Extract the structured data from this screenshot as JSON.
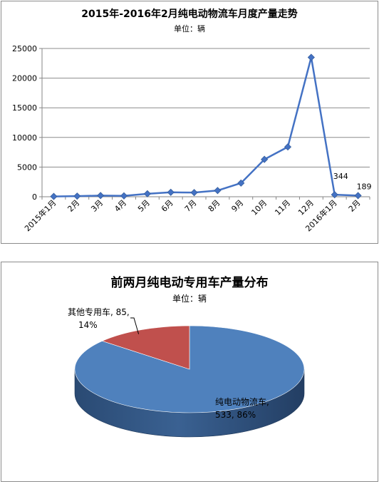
{
  "chart_data": [
    {
      "type": "line",
      "title": "2015年-2016年2月纯电动物流车月度产量走势",
      "subtitle": "单位：辆",
      "categories": [
        "2015年1月",
        "2月",
        "3月",
        "4月",
        "5月",
        "6月",
        "7月",
        "8月",
        "9月",
        "10月",
        "11月",
        "12月",
        "2016年1月",
        "2月"
      ],
      "series": [
        {
          "values": [
            50,
            100,
            200,
            150,
            500,
            750,
            700,
            1050,
            2300,
            6300,
            8400,
            23500,
            344,
            189
          ]
        }
      ],
      "data_labels": [
        "",
        "",
        "",
        "",
        "",
        "",
        "",
        "",
        "",
        "",
        "",
        "",
        "344",
        "189"
      ],
      "yticks": [
        "0",
        "5000",
        "10000",
        "15000",
        "20000",
        "25000"
      ],
      "ylim": [
        0,
        25000
      ],
      "grid": true,
      "legend": "none",
      "color": "#4472c4"
    },
    {
      "type": "pie",
      "title": "前两月纯电动专用车产量分布",
      "subtitle": "单位：辆",
      "slices": [
        {
          "label": "纯电动物流车",
          "value": 533,
          "percent": "86%",
          "label_line1": "纯电动物流车,",
          "label_line2": "533, 86%",
          "color": "#4f81bd"
        },
        {
          "label": "其他专用车",
          "value": 85,
          "percent": "14%",
          "label_line1": "其他专用车, 85,",
          "label_line2": "14%",
          "color": "#c0504d"
        }
      ]
    }
  ]
}
